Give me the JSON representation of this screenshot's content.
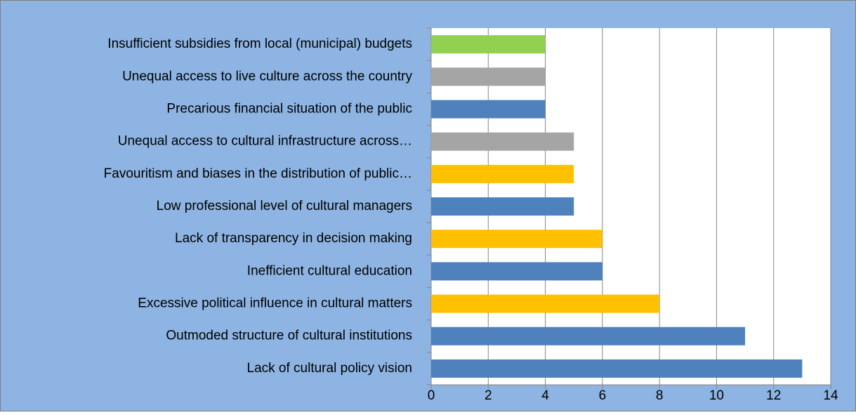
{
  "chart_data": {
    "type": "barh",
    "categories": [
      "Lack of cultural policy vision",
      "Outmoded structure of cultural institutions",
      "Excessive political influence in cultural matters",
      "Inefficient cultural education",
      "Lack of transparency in decision making",
      "Low professional level of cultural managers",
      "Favouritism and biases in the distribution of public…",
      "Unequal access to cultural infrastructure across…",
      "Precarious financial situation of the public",
      "Unequal access to live culture across the country",
      "Insufficient subsidies from local (municipal) budgets"
    ],
    "values": [
      13,
      11,
      8,
      6,
      6,
      5,
      5,
      5,
      4,
      4,
      4
    ],
    "colors": [
      "#4f81bd",
      "#4f81bd",
      "#ffc000",
      "#4f81bd",
      "#ffc000",
      "#4f81bd",
      "#ffc000",
      "#a5a5a5",
      "#4f81bd",
      "#a5a5a5",
      "#92d050"
    ],
    "xlim": [
      0,
      14
    ],
    "xticks": [
      0,
      2,
      4,
      6,
      8,
      10,
      12,
      14
    ],
    "grid": true
  }
}
